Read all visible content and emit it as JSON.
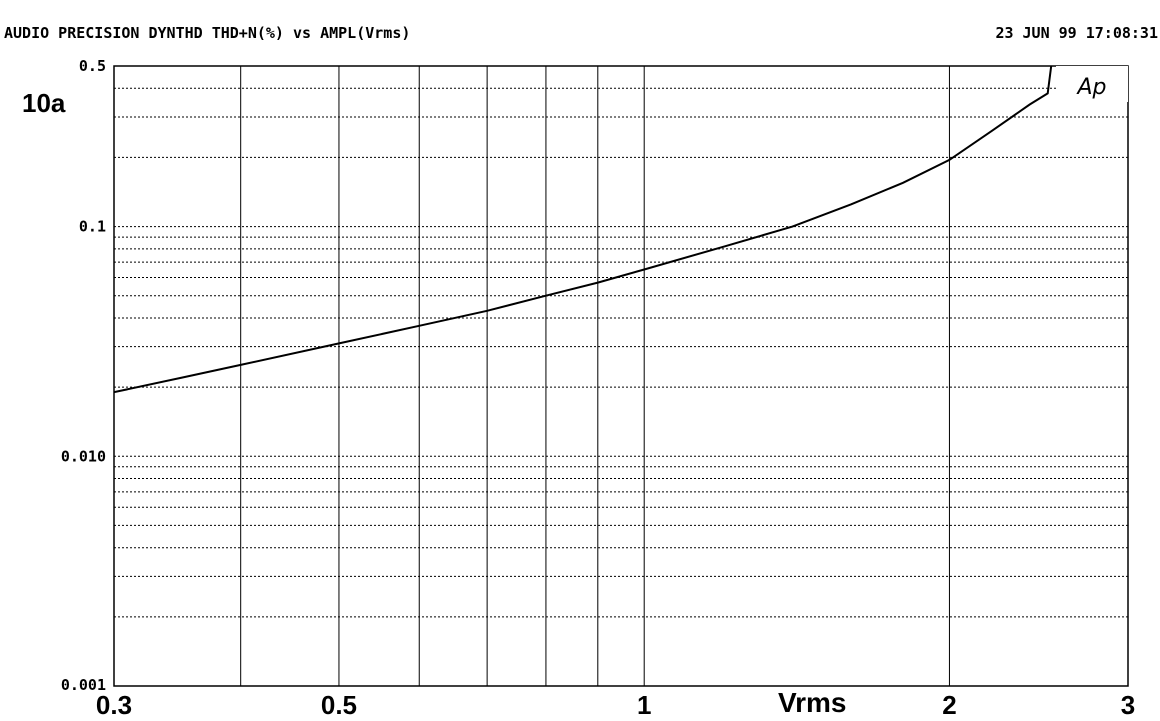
{
  "header": {
    "title": "AUDIO PRECISION DYNTHD THD+N(%) vs AMPL(Vrms)",
    "timestamp": "23 JUN 99 17:08:31"
  },
  "figure_label": "10a",
  "logo_text": "Ap",
  "chart_data": {
    "type": "line",
    "title": "AUDIO PRECISION DYNTHD THD+N(%) vs AMPL(Vrms)",
    "xlabel": "Vrms",
    "ylabel": "THD+N(%)",
    "x_scale": "log",
    "y_scale": "log",
    "xlim": [
      0.3,
      3
    ],
    "ylim": [
      0.001,
      0.5
    ],
    "grid": true,
    "x_ticks": [
      {
        "value": 0.3,
        "label": "0.3"
      },
      {
        "value": 0.5,
        "label": "0.5"
      },
      {
        "value": 1,
        "label": "1"
      },
      {
        "value": 2,
        "label": "2"
      },
      {
        "value": 3,
        "label": "3"
      }
    ],
    "y_ticks": [
      {
        "value": 0.5,
        "label": "0.5"
      },
      {
        "value": 0.1,
        "label": "0.1"
      },
      {
        "value": 0.01,
        "label": "0.010"
      },
      {
        "value": 0.001,
        "label": "0.001"
      }
    ],
    "series": [
      {
        "x": [
          0.3,
          0.35,
          0.4,
          0.5,
          0.6,
          0.7,
          0.8,
          0.9,
          1.0,
          1.2,
          1.4,
          1.6,
          1.8,
          2.0,
          2.2,
          2.4,
          2.5,
          2.52
        ],
        "y": [
          0.019,
          0.022,
          0.025,
          0.031,
          0.037,
          0.043,
          0.05,
          0.057,
          0.065,
          0.082,
          0.1,
          0.125,
          0.155,
          0.195,
          0.26,
          0.34,
          0.38,
          0.5
        ]
      }
    ]
  }
}
